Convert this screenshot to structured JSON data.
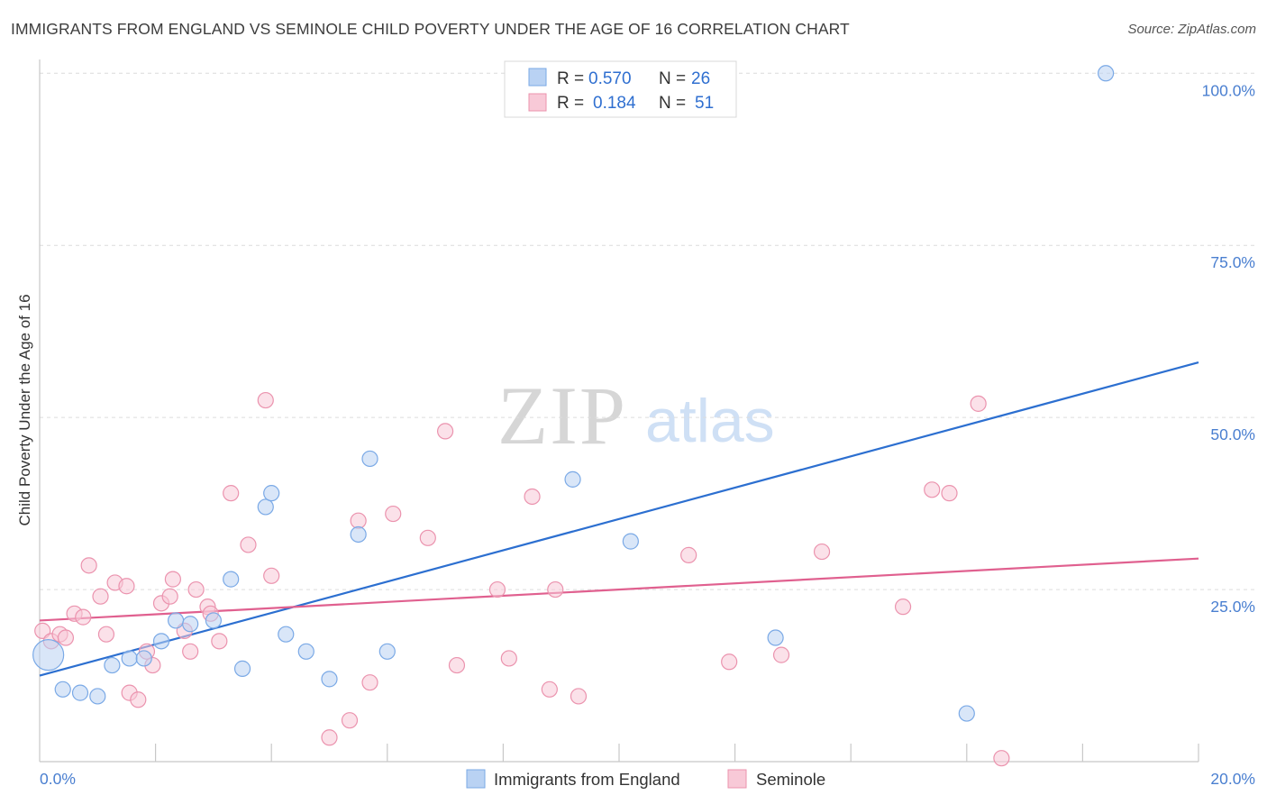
{
  "title": "IMMIGRANTS FROM ENGLAND VS SEMINOLE CHILD POVERTY UNDER THE AGE OF 16 CORRELATION CHART",
  "source": "Source: ZipAtlas.com",
  "watermark": {
    "zip": "ZIP",
    "atlas": "atlas"
  },
  "chart_data": {
    "type": "scatter",
    "title": "IMMIGRANTS FROM ENGLAND VS SEMINOLE CHILD POVERTY UNDER THE AGE OF 16 CORRELATION CHART",
    "xlabel": "",
    "ylabel": "Child Poverty Under the Age of 16",
    "xlim": [
      0,
      20
    ],
    "ylim": [
      0,
      102
    ],
    "x_tick_labels": [
      "0.0%",
      "20.0%"
    ],
    "y_ticks": [
      25,
      50,
      75,
      100
    ],
    "y_tick_labels": [
      "25.0%",
      "50.0%",
      "75.0%",
      "100.0%"
    ],
    "grid": true,
    "legend_top": [
      {
        "r_label": "R =",
        "r_value": "0.570",
        "n_label": "N =",
        "n_value": "26"
      },
      {
        "r_label": "R =",
        "r_value": "0.184",
        "n_label": "N =",
        "n_value": "51"
      }
    ],
    "series": [
      {
        "name": "Immigrants from England",
        "color": "#7aa9e6",
        "fill": "#b9d2f3",
        "line_color": "#2c6fd0",
        "trend": {
          "x": [
            0,
            20
          ],
          "y": [
            12.5,
            58
          ]
        },
        "points": [
          {
            "x": 0.15,
            "y": 15.5,
            "big": true
          },
          {
            "x": 0.4,
            "y": 10.5
          },
          {
            "x": 0.7,
            "y": 10
          },
          {
            "x": 1.0,
            "y": 9.5
          },
          {
            "x": 1.25,
            "y": 14
          },
          {
            "x": 1.55,
            "y": 15
          },
          {
            "x": 1.8,
            "y": 15
          },
          {
            "x": 2.1,
            "y": 17.5
          },
          {
            "x": 2.35,
            "y": 20.5
          },
          {
            "x": 2.6,
            "y": 20
          },
          {
            "x": 3.0,
            "y": 20.5
          },
          {
            "x": 3.3,
            "y": 26.5
          },
          {
            "x": 3.5,
            "y": 13.5
          },
          {
            "x": 3.9,
            "y": 37
          },
          {
            "x": 4.0,
            "y": 39
          },
          {
            "x": 4.25,
            "y": 18.5
          },
          {
            "x": 4.6,
            "y": 16
          },
          {
            "x": 5.0,
            "y": 12
          },
          {
            "x": 5.5,
            "y": 33
          },
          {
            "x": 5.7,
            "y": 44
          },
          {
            "x": 6.0,
            "y": 16
          },
          {
            "x": 9.2,
            "y": 41
          },
          {
            "x": 10.2,
            "y": 32
          },
          {
            "x": 12.7,
            "y": 18
          },
          {
            "x": 16.0,
            "y": 7
          },
          {
            "x": 18.4,
            "y": 100
          }
        ]
      },
      {
        "name": "Seminole",
        "color": "#eb93ae",
        "fill": "#f8c9d7",
        "line_color": "#e0608f",
        "trend": {
          "x": [
            0,
            20
          ],
          "y": [
            20.5,
            29.5
          ]
        },
        "points": [
          {
            "x": 0.05,
            "y": 19
          },
          {
            "x": 0.2,
            "y": 17.5
          },
          {
            "x": 0.35,
            "y": 18.5
          },
          {
            "x": 0.45,
            "y": 18
          },
          {
            "x": 0.6,
            "y": 21.5
          },
          {
            "x": 0.75,
            "y": 21
          },
          {
            "x": 0.85,
            "y": 28.5
          },
          {
            "x": 1.05,
            "y": 24
          },
          {
            "x": 1.15,
            "y": 18.5
          },
          {
            "x": 1.3,
            "y": 26
          },
          {
            "x": 1.5,
            "y": 25.5
          },
          {
            "x": 1.55,
            "y": 10
          },
          {
            "x": 1.7,
            "y": 9
          },
          {
            "x": 1.85,
            "y": 16
          },
          {
            "x": 1.95,
            "y": 14
          },
          {
            "x": 2.1,
            "y": 23
          },
          {
            "x": 2.25,
            "y": 24
          },
          {
            "x": 2.3,
            "y": 26.5
          },
          {
            "x": 2.5,
            "y": 19
          },
          {
            "x": 2.6,
            "y": 16
          },
          {
            "x": 2.7,
            "y": 25
          },
          {
            "x": 2.9,
            "y": 22.5
          },
          {
            "x": 2.95,
            "y": 21.5
          },
          {
            "x": 3.1,
            "y": 17.5
          },
          {
            "x": 3.3,
            "y": 39
          },
          {
            "x": 3.6,
            "y": 31.5
          },
          {
            "x": 3.9,
            "y": 52.5
          },
          {
            "x": 4.0,
            "y": 27
          },
          {
            "x": 5.0,
            "y": 3.5
          },
          {
            "x": 5.35,
            "y": 6
          },
          {
            "x": 5.5,
            "y": 35
          },
          {
            "x": 5.7,
            "y": 11.5
          },
          {
            "x": 6.1,
            "y": 36
          },
          {
            "x": 6.7,
            "y": 32.5
          },
          {
            "x": 7.0,
            "y": 48
          },
          {
            "x": 7.2,
            "y": 14
          },
          {
            "x": 7.9,
            "y": 25
          },
          {
            "x": 8.1,
            "y": 15
          },
          {
            "x": 8.5,
            "y": 38.5
          },
          {
            "x": 8.8,
            "y": 10.5
          },
          {
            "x": 8.9,
            "y": 25
          },
          {
            "x": 9.3,
            "y": 9.5
          },
          {
            "x": 11.2,
            "y": 30
          },
          {
            "x": 11.9,
            "y": 14.5
          },
          {
            "x": 12.8,
            "y": 15.5
          },
          {
            "x": 13.5,
            "y": 30.5
          },
          {
            "x": 14.9,
            "y": 22.5
          },
          {
            "x": 15.4,
            "y": 39.5
          },
          {
            "x": 15.7,
            "y": 39
          },
          {
            "x": 16.2,
            "y": 52
          },
          {
            "x": 16.6,
            "y": 0.5
          }
        ]
      }
    ]
  }
}
